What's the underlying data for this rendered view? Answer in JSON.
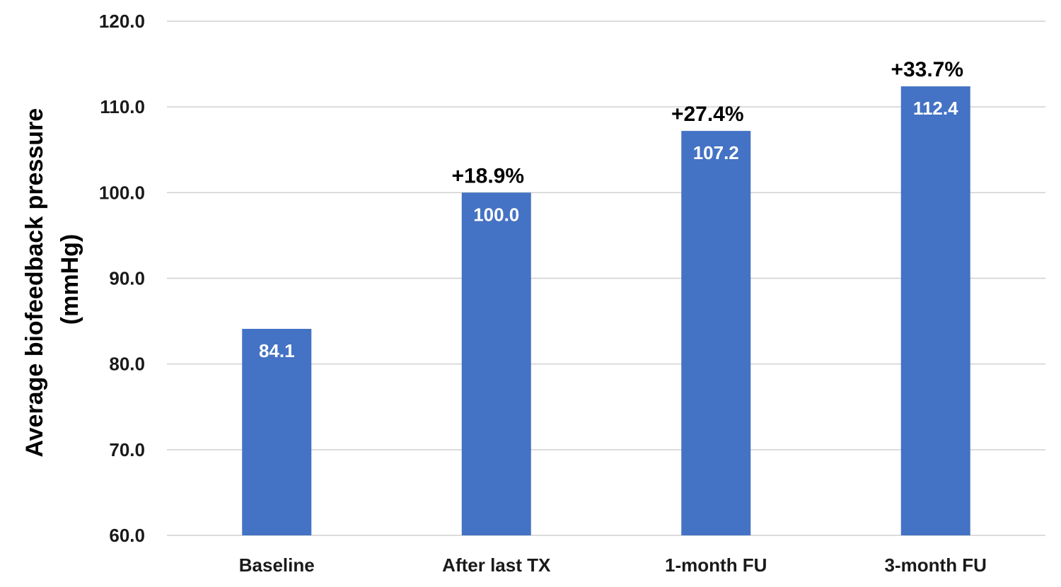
{
  "chart_data": {
    "type": "bar",
    "categories": [
      "Baseline",
      "After last TX",
      "1-month FU",
      "3-month FU"
    ],
    "values": [
      84.1,
      100.0,
      107.2,
      112.4
    ],
    "value_labels": [
      "84.1",
      "100.0",
      "107.2",
      "112.4"
    ],
    "change_labels": [
      "",
      "+18.9%",
      "+27.4%",
      "+33.7%"
    ],
    "ylabel_lines": [
      "Average biofeedback pressure",
      "(mmHg)"
    ],
    "ylim": [
      60,
      120
    ],
    "yticks": [
      60,
      70,
      80,
      90,
      100,
      110,
      120
    ],
    "ytick_labels": [
      "60.0",
      "70.0",
      "80.0",
      "90.0",
      "100.0",
      "110.0",
      "120.0"
    ],
    "grid": true,
    "legend": "none",
    "bar_color": "#4472C4",
    "grid_color": "#D0D0D0"
  }
}
